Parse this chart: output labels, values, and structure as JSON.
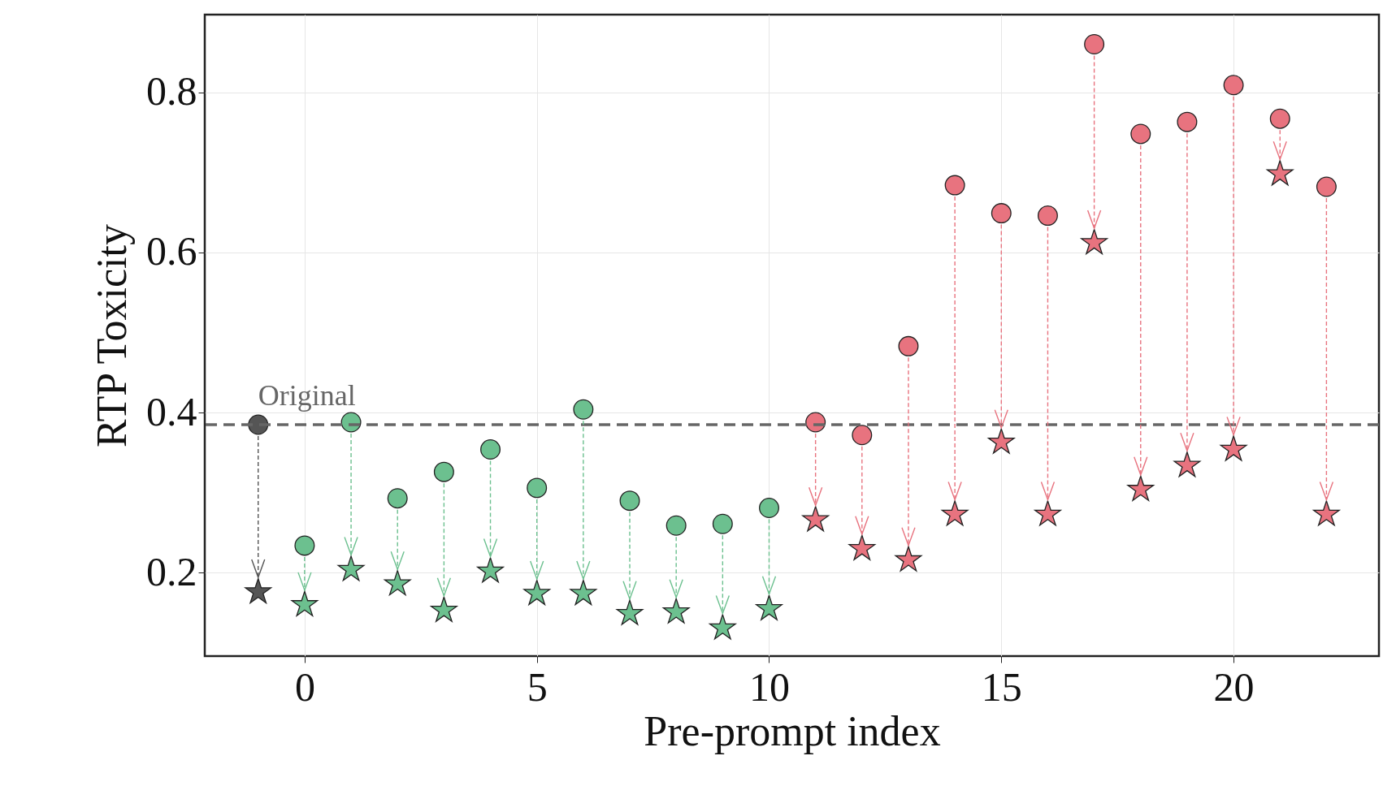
{
  "chart_data": {
    "type": "scatter",
    "xlabel": "Pre-prompt index",
    "ylabel": "RTP Toxicity",
    "xlim": [
      -2.15,
      23.13
    ],
    "ylim": [
      0.096,
      0.897
    ],
    "xticks": [
      0,
      5,
      10,
      15,
      20
    ],
    "yticks": [
      0.2,
      0.4,
      0.6,
      0.8
    ],
    "grid": true,
    "series": [
      {
        "color": "#555555",
        "marker": "circle",
        "x": [
          -1
        ],
        "values": [
          0.385
        ]
      },
      {
        "color": "#555555",
        "marker": "star",
        "x": [
          -1
        ],
        "values": [
          0.176
        ]
      },
      {
        "color": "#6cc08f",
        "marker": "circle",
        "x": [
          0,
          1,
          2,
          3,
          4,
          5,
          6,
          7,
          8,
          9,
          10
        ],
        "values": [
          0.234,
          0.388,
          0.293,
          0.326,
          0.354,
          0.306,
          0.404,
          0.29,
          0.259,
          0.261,
          0.281
        ]
      },
      {
        "color": "#6cc08f",
        "marker": "star",
        "x": [
          0,
          1,
          2,
          3,
          4,
          5,
          6,
          7,
          8,
          9,
          10
        ],
        "values": [
          0.16,
          0.204,
          0.186,
          0.153,
          0.202,
          0.174,
          0.174,
          0.149,
          0.151,
          0.131,
          0.155
        ]
      },
      {
        "color": "#e8737f",
        "marker": "circle",
        "x": [
          11,
          12,
          13,
          14,
          15,
          16,
          17,
          18,
          19,
          20,
          21,
          22
        ],
        "values": [
          0.388,
          0.372,
          0.483,
          0.684,
          0.649,
          0.646,
          0.86,
          0.748,
          0.763,
          0.809,
          0.767,
          0.682
        ]
      },
      {
        "color": "#e8737f",
        "marker": "star",
        "x": [
          11,
          12,
          13,
          14,
          15,
          16,
          17,
          18,
          19,
          20,
          21,
          22
        ],
        "values": [
          0.266,
          0.23,
          0.216,
          0.273,
          0.363,
          0.273,
          0.612,
          0.304,
          0.334,
          0.354,
          0.698,
          0.273
        ]
      }
    ],
    "ref_lines": [
      {
        "axis": "y",
        "value": 0.385,
        "color": "#666666",
        "line_style": "dashed"
      }
    ],
    "annotations": [
      {
        "text": "Original",
        "x": -1,
        "y": 0.385
      }
    ]
  }
}
